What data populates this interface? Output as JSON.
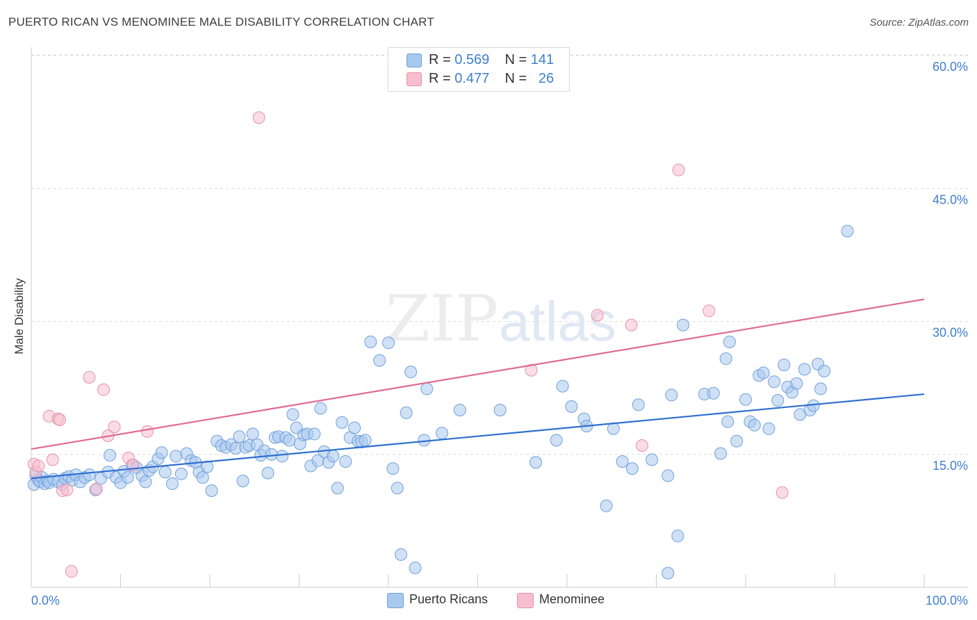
{
  "title": "PUERTO RICAN VS MENOMINEE MALE DISABILITY CORRELATION CHART",
  "source": "Source: ZipAtlas.com",
  "watermark": {
    "zip": "ZIP",
    "atlas": "atlas"
  },
  "legend": {
    "r_label": "R =",
    "n_label": "N =",
    "series": [
      {
        "name": "Puerto Ricans",
        "r": "0.569",
        "n": "141",
        "fill": "#a9c8ee",
        "stroke": "#6fa0dc"
      },
      {
        "name": "Menominee",
        "r": "0.477",
        "n": "26",
        "fill": "#f6bfd0",
        "stroke": "#e592ad"
      }
    ]
  },
  "chart_data": {
    "type": "scatter",
    "title": "PUERTO RICAN VS MENOMINEE MALE DISABILITY CORRELATION CHART",
    "xlabel": "",
    "ylabel": "Male Disability",
    "xlim": [
      0,
      100
    ],
    "ylim": [
      0,
      63
    ],
    "x_tick_labels": [
      "0.0%",
      "100.0%"
    ],
    "y_ticks": [
      15,
      30,
      45,
      60
    ],
    "y_tick_labels": [
      "15.0%",
      "30.0%",
      "45.0%",
      "60.0%"
    ],
    "grid": true,
    "series": [
      {
        "name": "Puerto Ricans",
        "color": "#6fa0dc",
        "trend": {
          "x": [
            0,
            100
          ],
          "y": [
            12.3,
            21.8
          ],
          "color": "#2f6fcf"
        },
        "points": [
          [
            0.3,
            11.6
          ],
          [
            0.5,
            12.6
          ],
          [
            0.8,
            12.1
          ],
          [
            1.0,
            11.9
          ],
          [
            1.2,
            12.4
          ],
          [
            1.5,
            11.7
          ],
          [
            1.8,
            12.0
          ],
          [
            2.0,
            11.8
          ],
          [
            2.5,
            12.2
          ],
          [
            3.0,
            11.9
          ],
          [
            3.5,
            11.6
          ],
          [
            3.8,
            12.3
          ],
          [
            4.2,
            12.5
          ],
          [
            4.6,
            12.1
          ],
          [
            5.0,
            12.7
          ],
          [
            5.5,
            11.9
          ],
          [
            6.0,
            12.4
          ],
          [
            6.5,
            12.7
          ],
          [
            7.2,
            11.0
          ],
          [
            7.8,
            12.3
          ],
          [
            8.6,
            13.0
          ],
          [
            8.8,
            14.9
          ],
          [
            9.5,
            12.4
          ],
          [
            10.0,
            11.8
          ],
          [
            10.4,
            13.1
          ],
          [
            10.8,
            12.4
          ],
          [
            11.3,
            13.8
          ],
          [
            11.8,
            13.5
          ],
          [
            12.4,
            12.6
          ],
          [
            12.8,
            11.9
          ],
          [
            13.2,
            13.2
          ],
          [
            13.6,
            13.6
          ],
          [
            14.2,
            14.5
          ],
          [
            14.6,
            15.2
          ],
          [
            15.0,
            13.0
          ],
          [
            15.8,
            11.7
          ],
          [
            16.2,
            14.8
          ],
          [
            16.8,
            12.8
          ],
          [
            17.4,
            15.1
          ],
          [
            17.9,
            14.3
          ],
          [
            18.4,
            14.1
          ],
          [
            18.8,
            13.0
          ],
          [
            19.2,
            12.4
          ],
          [
            19.7,
            13.6
          ],
          [
            20.2,
            10.9
          ],
          [
            20.8,
            16.5
          ],
          [
            21.3,
            16.0
          ],
          [
            21.8,
            15.8
          ],
          [
            22.4,
            16.1
          ],
          [
            22.9,
            15.7
          ],
          [
            23.3,
            17.0
          ],
          [
            23.7,
            12.0
          ],
          [
            24.0,
            15.8
          ],
          [
            24.4,
            16.0
          ],
          [
            24.8,
            17.3
          ],
          [
            25.3,
            16.1
          ],
          [
            25.7,
            14.9
          ],
          [
            26.1,
            15.4
          ],
          [
            26.5,
            12.9
          ],
          [
            26.9,
            15.0
          ],
          [
            27.3,
            16.9
          ],
          [
            27.7,
            17.0
          ],
          [
            28.1,
            14.8
          ],
          [
            28.5,
            16.9
          ],
          [
            28.9,
            16.6
          ],
          [
            29.3,
            19.5
          ],
          [
            29.7,
            18.0
          ],
          [
            30.1,
            16.2
          ],
          [
            30.5,
            17.2
          ],
          [
            30.9,
            17.3
          ],
          [
            31.3,
            13.7
          ],
          [
            31.7,
            17.3
          ],
          [
            32.1,
            14.3
          ],
          [
            32.4,
            20.2
          ],
          [
            32.8,
            15.3
          ],
          [
            33.3,
            14.1
          ],
          [
            33.8,
            14.8
          ],
          [
            34.3,
            11.2
          ],
          [
            34.8,
            18.6
          ],
          [
            35.2,
            14.2
          ],
          [
            35.7,
            16.9
          ],
          [
            36.2,
            18.0
          ],
          [
            36.6,
            16.5
          ],
          [
            37.0,
            16.4
          ],
          [
            37.4,
            16.6
          ],
          [
            38.0,
            27.7
          ],
          [
            39.0,
            25.6
          ],
          [
            40.0,
            27.6
          ],
          [
            40.5,
            13.4
          ],
          [
            41.0,
            11.2
          ],
          [
            41.4,
            3.7
          ],
          [
            42.0,
            19.7
          ],
          [
            42.5,
            24.3
          ],
          [
            43.0,
            2.2
          ],
          [
            44.0,
            16.6
          ],
          [
            44.3,
            22.4
          ],
          [
            46.0,
            17.4
          ],
          [
            48.0,
            20.0
          ],
          [
            52.5,
            20.0
          ],
          [
            56.5,
            14.1
          ],
          [
            58.8,
            16.6
          ],
          [
            59.5,
            22.7
          ],
          [
            60.5,
            20.4
          ],
          [
            61.9,
            19.0
          ],
          [
            62.2,
            18.2
          ],
          [
            64.4,
            9.2
          ],
          [
            65.2,
            17.9
          ],
          [
            66.2,
            14.2
          ],
          [
            67.3,
            13.4
          ],
          [
            68.0,
            20.6
          ],
          [
            69.5,
            14.4
          ],
          [
            71.3,
            12.6
          ],
          [
            71.7,
            21.7
          ],
          [
            72.4,
            5.8
          ],
          [
            73.0,
            29.6
          ],
          [
            75.4,
            21.8
          ],
          [
            76.4,
            21.9
          ],
          [
            77.2,
            15.1
          ],
          [
            77.8,
            25.8
          ],
          [
            78.0,
            18.7
          ],
          [
            78.2,
            27.7
          ],
          [
            79.0,
            16.5
          ],
          [
            80.0,
            21.2
          ],
          [
            80.5,
            18.7
          ],
          [
            81.0,
            18.3
          ],
          [
            81.5,
            23.9
          ],
          [
            82.0,
            24.2
          ],
          [
            82.6,
            17.9
          ],
          [
            83.2,
            23.2
          ],
          [
            83.6,
            21.1
          ],
          [
            84.3,
            25.1
          ],
          [
            84.7,
            22.6
          ],
          [
            85.2,
            22.0
          ],
          [
            85.7,
            23.0
          ],
          [
            86.1,
            19.5
          ],
          [
            86.6,
            24.6
          ],
          [
            87.2,
            20.0
          ],
          [
            87.6,
            20.5
          ],
          [
            88.1,
            25.2
          ],
          [
            88.4,
            22.4
          ],
          [
            88.8,
            24.4
          ],
          [
            71.3,
            1.6
          ],
          [
            91.4,
            40.2
          ]
        ]
      },
      {
        "name": "Menominee",
        "color": "#e592ad",
        "trend": {
          "x": [
            0,
            100
          ],
          "y": [
            15.6,
            32.5
          ],
          "color": "#e06a93"
        },
        "points": [
          [
            0.3,
            13.9
          ],
          [
            0.5,
            13.0
          ],
          [
            0.8,
            13.7
          ],
          [
            2.0,
            19.3
          ],
          [
            2.4,
            14.4
          ],
          [
            3.0,
            19.0
          ],
          [
            3.2,
            18.9
          ],
          [
            3.5,
            10.9
          ],
          [
            4.0,
            11.0
          ],
          [
            4.5,
            1.8
          ],
          [
            6.5,
            23.7
          ],
          [
            7.3,
            11.1
          ],
          [
            8.1,
            22.3
          ],
          [
            8.6,
            17.1
          ],
          [
            9.3,
            18.1
          ],
          [
            10.9,
            14.6
          ],
          [
            11.4,
            13.8
          ],
          [
            13.0,
            17.6
          ],
          [
            25.5,
            53.0
          ],
          [
            56.0,
            24.5
          ],
          [
            63.4,
            30.7
          ],
          [
            67.2,
            29.6
          ],
          [
            68.4,
            16.0
          ],
          [
            72.5,
            47.1
          ],
          [
            75.9,
            31.2
          ],
          [
            84.1,
            10.7
          ]
        ]
      }
    ]
  }
}
